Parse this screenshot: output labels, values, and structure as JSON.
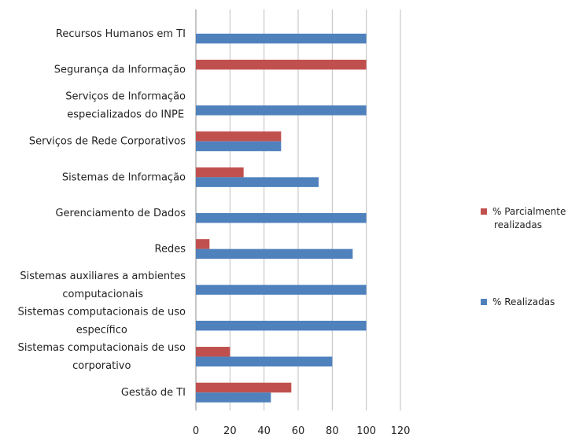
{
  "chart_data": {
    "type": "bar",
    "orientation": "horizontal",
    "categories": [
      [
        "Recursos Humanos em TI"
      ],
      [
        "Segurança da Informação"
      ],
      [
        "Serviços de Informação",
        "especializados do INPE"
      ],
      [
        "Serviços de Rede Corporativos"
      ],
      [
        "Sistemas de Informação"
      ],
      [
        "Gerenciamento de Dados"
      ],
      [
        "Redes"
      ],
      [
        "Sistemas auxiliares a ambientes",
        "computacionais"
      ],
      [
        "Sistemas computacionais de uso",
        "específico"
      ],
      [
        "Sistemas computacionais de uso",
        "corporativo"
      ],
      [
        "Gestão de TI"
      ]
    ],
    "series": [
      {
        "name": "% Parcialmente realizadas",
        "legend_lines": [
          "% Parcialmente",
          "realizadas"
        ],
        "color": "#c0504d",
        "values": [
          0,
          100,
          0,
          50,
          28,
          0,
          8,
          0,
          0,
          20,
          56
        ]
      },
      {
        "name": "% Realizadas",
        "legend_lines": [
          "% Realizadas"
        ],
        "color": "#4f81bd",
        "values": [
          100,
          0,
          100,
          50,
          72,
          100,
          92,
          100,
          100,
          80,
          44
        ]
      }
    ],
    "xlim": [
      0,
      120
    ],
    "xticks": [
      0,
      20,
      40,
      60,
      80,
      100,
      120
    ],
    "grid": "vertical",
    "legend_position": "right",
    "title": "",
    "xlabel": "",
    "ylabel": ""
  }
}
